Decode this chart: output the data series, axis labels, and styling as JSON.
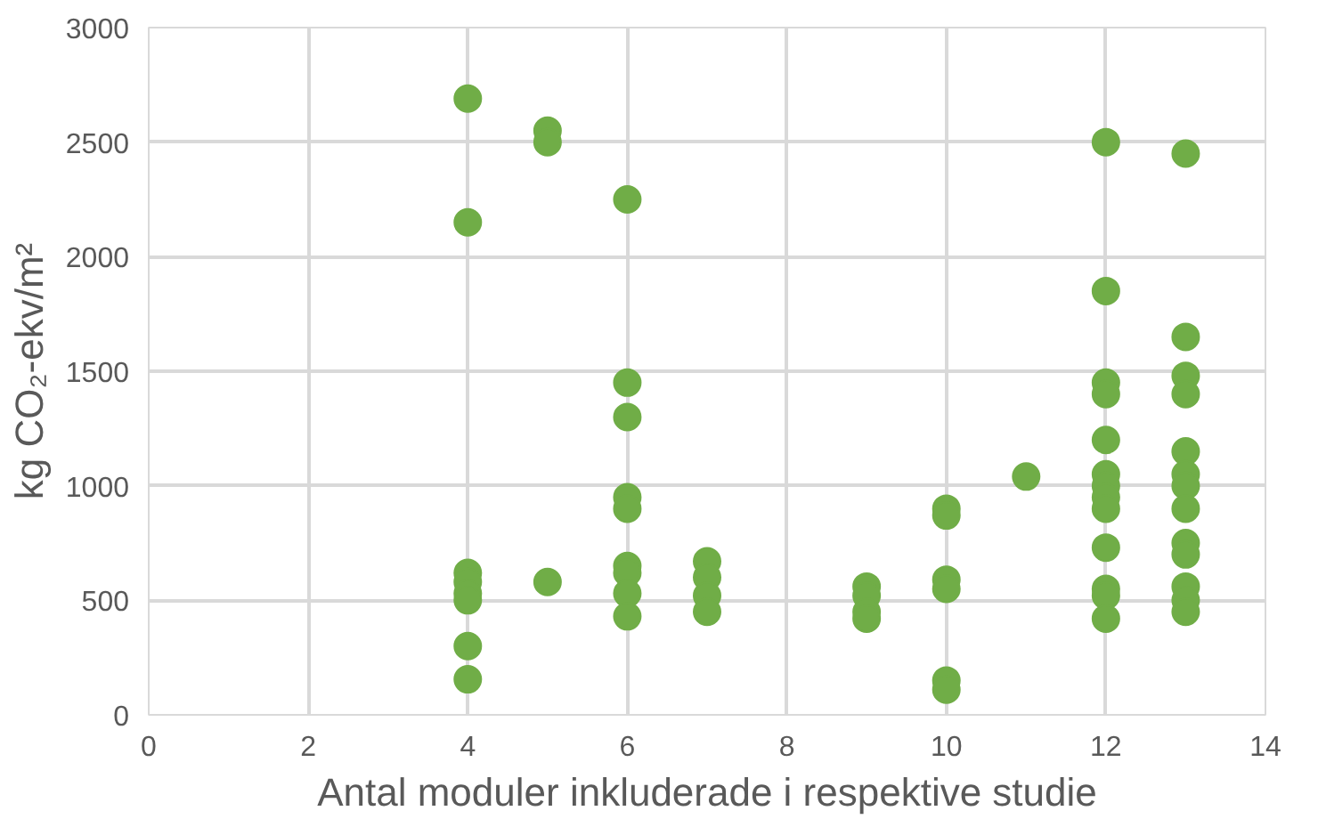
{
  "chart_data": {
    "type": "scatter",
    "xlabel": "Antal moduler inkluderade i respektive studie",
    "ylabel": "kg CO₂-ekv/m²",
    "x": [
      4,
      4,
      4,
      4,
      4,
      4,
      4,
      4,
      5,
      5,
      5,
      6,
      6,
      6,
      6,
      6,
      6,
      6,
      6,
      6,
      7,
      7,
      7,
      7,
      9,
      9,
      9,
      9,
      10,
      10,
      10,
      10,
      10,
      10,
      11,
      12,
      12,
      12,
      12,
      12,
      12,
      12,
      12,
      12,
      12,
      12,
      12,
      12,
      13,
      13,
      13,
      13,
      13,
      13,
      13,
      13,
      13,
      13,
      13,
      13,
      13
    ],
    "values": [
      2690,
      2150,
      620,
      580,
      530,
      500,
      300,
      155,
      2550,
      2500,
      580,
      2250,
      1450,
      1300,
      950,
      900,
      650,
      620,
      530,
      430,
      670,
      600,
      520,
      450,
      560,
      520,
      450,
      420,
      900,
      870,
      590,
      550,
      150,
      110,
      1040,
      2500,
      1850,
      1450,
      1400,
      1200,
      1050,
      1000,
      950,
      900,
      730,
      550,
      520,
      420,
      2450,
      1650,
      1480,
      1400,
      1150,
      1050,
      1000,
      900,
      750,
      700,
      560,
      500,
      450
    ],
    "color": "#70ad47",
    "marker": "circle",
    "xlim": [
      0,
      14
    ],
    "xticks": [
      0,
      2,
      4,
      6,
      8,
      10,
      12,
      14
    ],
    "ylim": [
      0,
      3000
    ],
    "yticks": [
      0,
      500,
      1000,
      1500,
      2000,
      2500,
      3000
    ],
    "grid": true
  }
}
